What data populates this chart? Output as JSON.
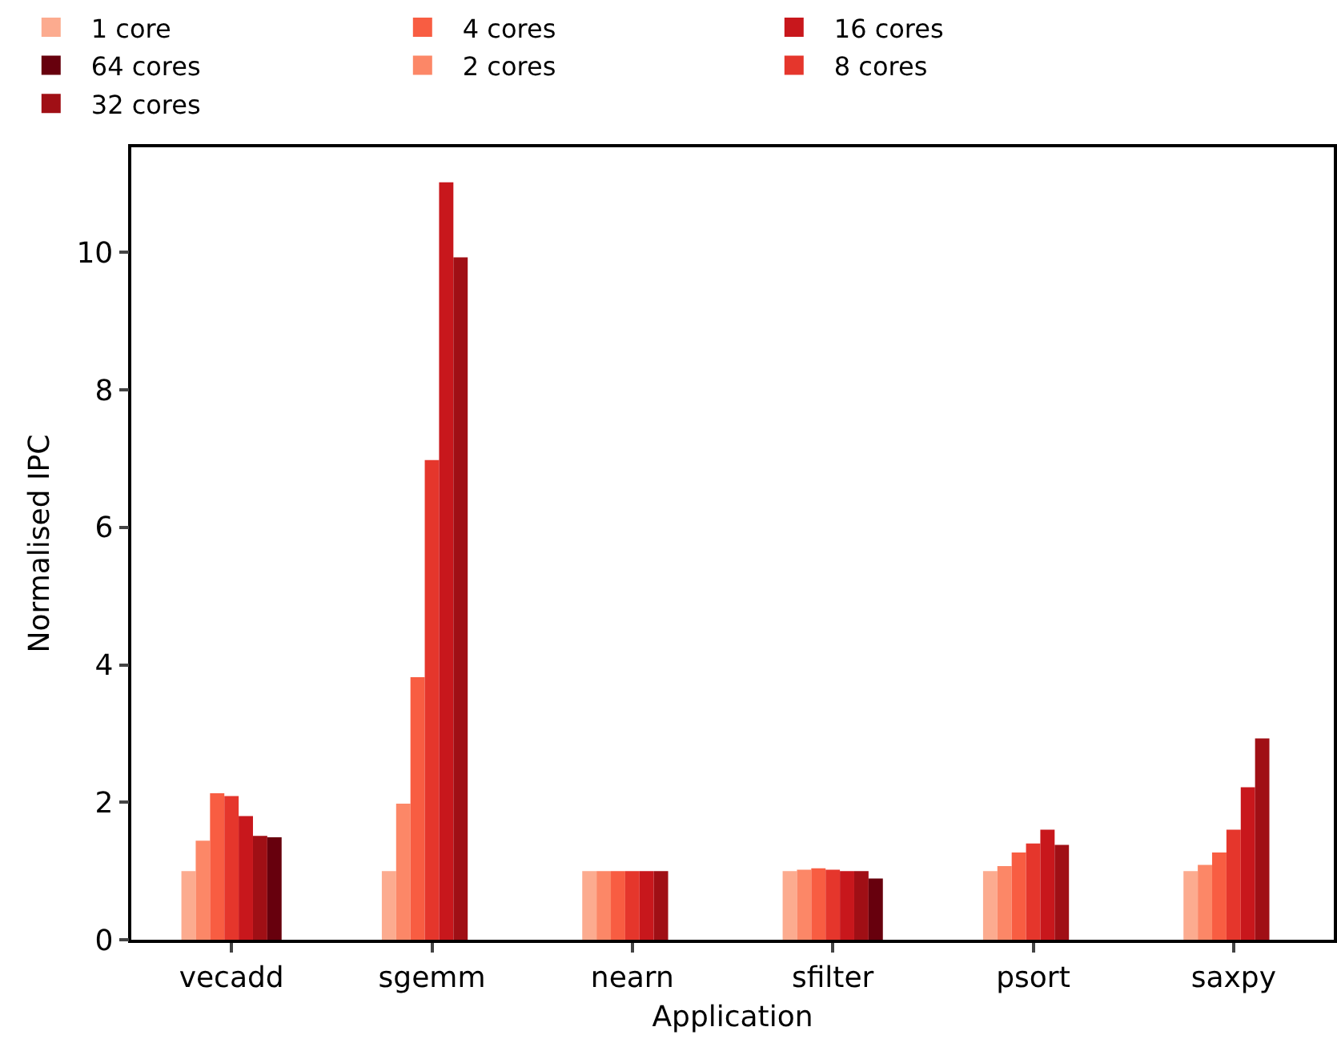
{
  "chart_data": {
    "type": "bar",
    "xlabel": "Application",
    "ylabel": "Normalised IPC",
    "categories": [
      "vecadd",
      "sgemm",
      "nearn",
      "sfilter",
      "psort",
      "saxpy"
    ],
    "series": [
      {
        "name": "1 core",
        "color": "#fcab8f",
        "values": [
          1.0,
          1.0,
          1.0,
          1.0,
          1.0,
          1.0
        ]
      },
      {
        "name": "2 cores",
        "color": "#fc8767",
        "values": [
          1.44,
          1.98,
          1.0,
          1.02,
          1.07,
          1.09
        ]
      },
      {
        "name": "4 cores",
        "color": "#f85d42",
        "values": [
          2.13,
          3.82,
          1.0,
          1.04,
          1.27,
          1.27
        ]
      },
      {
        "name": "8 cores",
        "color": "#e5362c",
        "values": [
          2.09,
          6.98,
          1.0,
          1.02,
          1.4,
          1.6
        ]
      },
      {
        "name": "16 cores",
        "color": "#c8171c",
        "values": [
          1.8,
          11.02,
          1.0,
          1.0,
          1.6,
          2.22
        ]
      },
      {
        "name": "32 cores",
        "color": "#a00f15",
        "values": [
          1.51,
          9.93,
          1.0,
          1.0,
          1.38,
          2.93
        ]
      },
      {
        "name": "64 cores",
        "color": "#67000d",
        "values": [
          1.49,
          null,
          null,
          0.89,
          null,
          null
        ]
      }
    ],
    "ylim": [
      0,
      11.53
    ],
    "yticks": [
      0,
      2,
      4,
      6,
      8,
      10
    ],
    "grid": false,
    "legend": "top"
  }
}
